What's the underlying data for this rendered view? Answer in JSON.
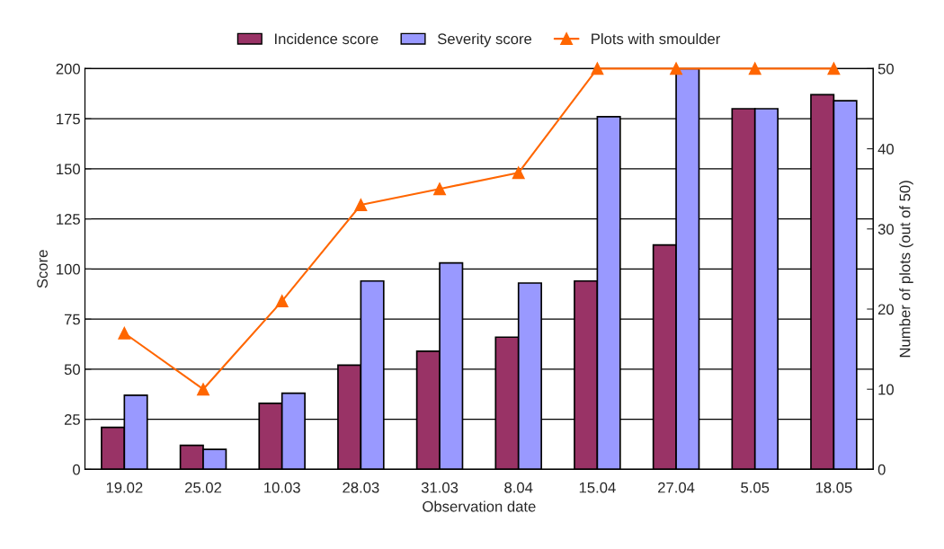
{
  "chart_data": {
    "type": "bar",
    "categories": [
      "19.02",
      "25.02",
      "10.03",
      "28.03",
      "31.03",
      "8.04",
      "15.04",
      "27.04",
      "5.05",
      "18.05"
    ],
    "series": [
      {
        "name": "Incidence score",
        "color": "#993366",
        "values": [
          21,
          12,
          33,
          52,
          59,
          66,
          94,
          112,
          180,
          187
        ]
      },
      {
        "name": "Severity score",
        "color": "#9999ff",
        "values": [
          37,
          10,
          38,
          94,
          103,
          93,
          176,
          200,
          180,
          184
        ]
      },
      {
        "name": "Plots with smoulder",
        "type": "line",
        "axis": "y2",
        "color": "#ff6600",
        "marker": "triangle",
        "values": [
          17,
          10,
          21,
          33,
          35,
          37,
          50,
          50,
          50,
          50
        ]
      }
    ],
    "xlabel": "Observation date",
    "ylabel": "Score",
    "y2label": "Number of plots (out of 50)",
    "ylim": [
      0,
      200
    ],
    "yticks": [
      0,
      25,
      50,
      75,
      100,
      125,
      150,
      175,
      200
    ],
    "y2lim": [
      0,
      50
    ],
    "y2ticks": [
      0,
      10,
      20,
      30,
      40,
      50
    ],
    "grid": "y",
    "legend": "top"
  }
}
